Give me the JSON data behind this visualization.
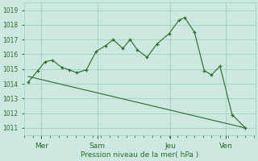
{
  "xlabel": "Pression niveau de la mer( hPa )",
  "bg_color": "#cce8e0",
  "line_color": "#2d6b2d",
  "grid_color": "#99ccbb",
  "ylim": [
    1010.5,
    1019.5
  ],
  "yticks": [
    1011,
    1012,
    1013,
    1014,
    1015,
    1016,
    1017,
    1018,
    1019
  ],
  "xlim": [
    0,
    9.5
  ],
  "xtick_labels": [
    "Mer",
    "Sam",
    "Jeu",
    "Ven"
  ],
  "xtick_positions": [
    0.7,
    3.0,
    6.0,
    8.3
  ],
  "series1_x": [
    0.15,
    0.55,
    0.85,
    1.15,
    1.55,
    1.85,
    2.15,
    2.55,
    2.95,
    3.35,
    3.65,
    4.05,
    4.35,
    4.65,
    5.05,
    5.45,
    5.95,
    6.35,
    6.6,
    7.0,
    7.4,
    7.7,
    8.05,
    8.55,
    9.1
  ],
  "series1_y": [
    1014.1,
    1014.9,
    1015.5,
    1015.6,
    1015.1,
    1014.95,
    1014.75,
    1014.95,
    1016.2,
    1016.6,
    1017.0,
    1016.4,
    1017.0,
    1016.3,
    1015.8,
    1016.7,
    1017.4,
    1018.3,
    1018.5,
    1017.5,
    1014.9,
    1014.6,
    1015.2,
    1011.9,
    1011.0
  ],
  "series2_x": [
    0.15,
    9.1
  ],
  "series2_y": [
    1014.5,
    1011.0
  ]
}
